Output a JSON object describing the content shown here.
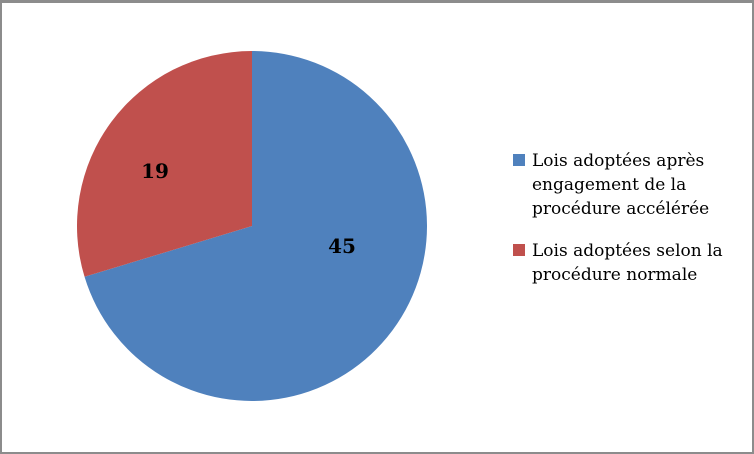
{
  "chart_data": {
    "type": "pie",
    "labels": [
      "Lois adoptées après engagement de la procédure accélérée",
      "Lois adoptées selon la procédure normale"
    ],
    "values": [
      45,
      19
    ],
    "colors": [
      "#4F81BD",
      "#C0504D"
    ],
    "data_labels": [
      "45",
      "19"
    ],
    "start_angle_deg": 0,
    "direction": "clockwise",
    "title": "",
    "legend_position": "right",
    "background_color": "#FFFFFF",
    "border_color": "#8C8C8C",
    "label_color": "#000000"
  },
  "legend": {
    "items": [
      {
        "label": "Lois adoptées après\nengagement de la\nprocédure accélérée",
        "swatch_color": "#4F81BD"
      },
      {
        "label": "Lois adoptées selon la\nprocédure normale",
        "swatch_color": "#C0504D"
      }
    ]
  }
}
